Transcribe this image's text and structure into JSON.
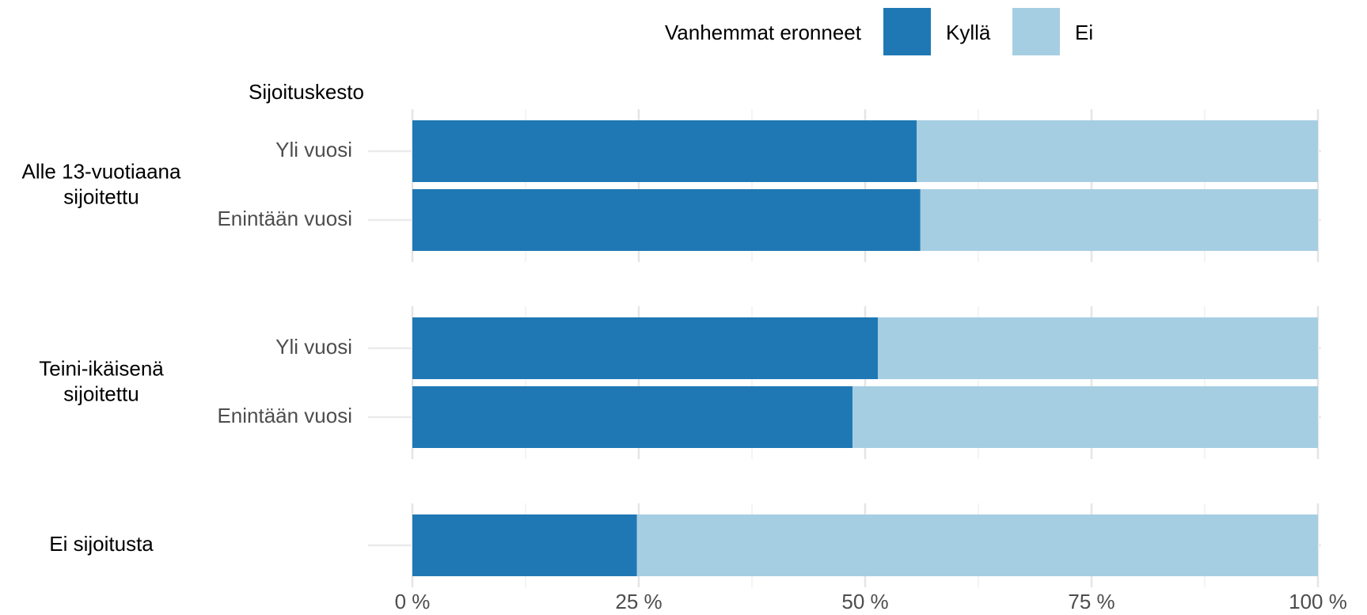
{
  "chart_data": {
    "type": "bar",
    "orientation": "horizontal",
    "stacked": true,
    "legend_title": "Vanhemmat eronneet",
    "y_axis_title": "Sijoituskesto",
    "legend_position": "top",
    "groups": [
      {
        "name": "Alle 13-vuotiaana sijoitettu",
        "categories": [
          "Yli vuosi",
          "Enintään vuosi"
        ]
      },
      {
        "name": "Teini-ikäisenä sijoitettu",
        "categories": [
          "Yli vuosi",
          "Enintään vuosi"
        ]
      },
      {
        "name": "Ei sijoitusta",
        "categories": [
          null
        ]
      }
    ],
    "series": [
      {
        "name": "Kyllä",
        "color": "#1f78b4",
        "values": [
          55.7,
          56.1,
          51.4,
          48.6,
          24.8
        ]
      },
      {
        "name": "Ei",
        "color": "#a6cee3",
        "values": [
          44.3,
          43.9,
          48.6,
          51.4,
          75.2
        ]
      }
    ],
    "xlim": [
      0,
      100
    ],
    "xticks": [
      {
        "value": 0,
        "label": "0 %"
      },
      {
        "value": 25,
        "label": "25 %"
      },
      {
        "value": 50,
        "label": "50 %"
      },
      {
        "value": 75,
        "label": "75 %"
      },
      {
        "value": 100,
        "label": "100 %"
      }
    ],
    "xticks_minor": [
      12.5,
      37.5,
      62.5,
      87.5
    ],
    "grid": true
  }
}
